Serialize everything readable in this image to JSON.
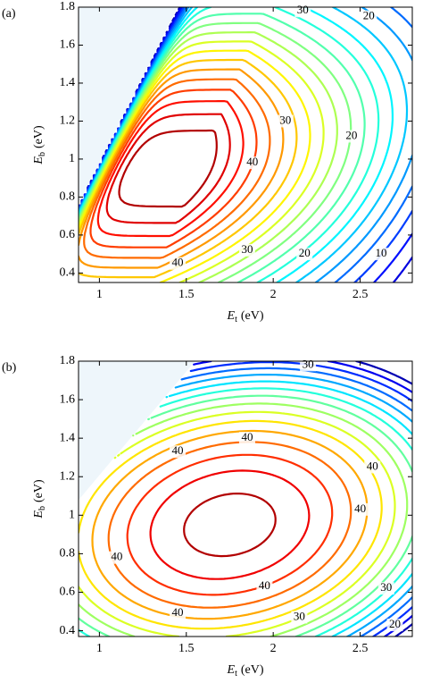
{
  "chart_data": [
    {
      "type": "contour",
      "panel_label": "(a)",
      "xlabel": {
        "symbol": "E",
        "subscript": "t",
        "unit": "(eV)"
      },
      "ylabel": {
        "symbol": "E",
        "subscript": "b",
        "unit": "(eV)"
      },
      "xlim": [
        0.88,
        2.8
      ],
      "ylim": [
        0.35,
        1.8
      ],
      "xticks": [
        1,
        1.5,
        2,
        2.5
      ],
      "yticks": [
        0.4,
        0.6,
        0.8,
        1,
        1.2,
        1.4,
        1.6,
        1.8
      ],
      "colormap": "jet",
      "levels": [
        4,
        6,
        8,
        10,
        12,
        14,
        16,
        18,
        20,
        22,
        24,
        26,
        28,
        30,
        32,
        34,
        36,
        38,
        40,
        42,
        44
      ],
      "contour_labels": [
        30,
        20,
        30,
        20,
        40,
        30,
        20,
        10,
        40
      ]
    },
    {
      "type": "contour",
      "panel_label": "(b)",
      "xlabel": {
        "symbol": "E",
        "subscript": "t",
        "unit": "(eV)"
      },
      "ylabel": {
        "symbol": "E",
        "subscript": "b",
        "unit": "(eV)"
      },
      "xlim": [
        0.88,
        2.8
      ],
      "ylim": [
        0.37,
        1.8
      ],
      "xticks": [
        1,
        1.5,
        2,
        2.5
      ],
      "yticks": [
        0.4,
        0.6,
        0.8,
        1,
        1.2,
        1.4,
        1.6,
        1.8
      ],
      "colormap": "jet",
      "levels": [
        16,
        18,
        20,
        22,
        24,
        26,
        28,
        30,
        32,
        34,
        36,
        38,
        40,
        42,
        44,
        46
      ],
      "contour_labels": [
        30,
        40,
        40,
        40,
        40,
        40,
        40,
        40,
        30,
        30,
        20
      ]
    }
  ]
}
